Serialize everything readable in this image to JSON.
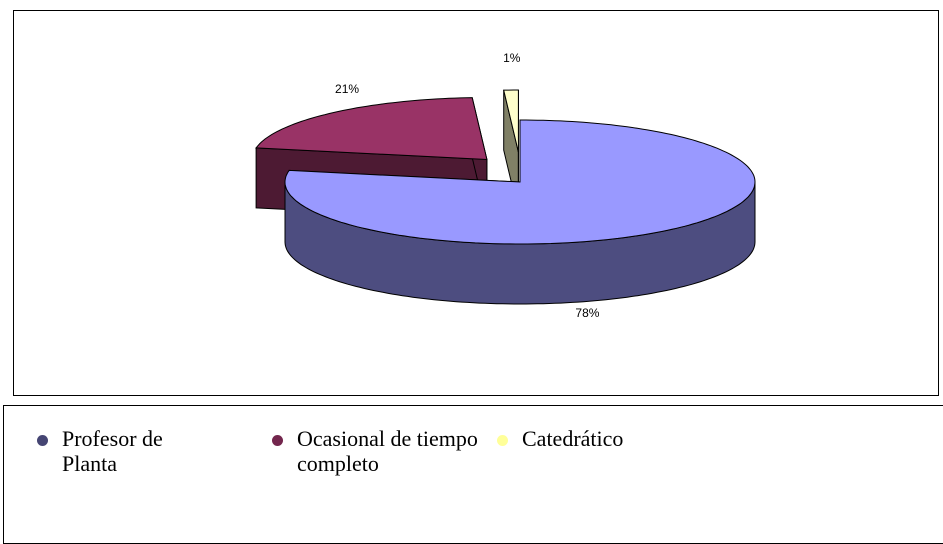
{
  "chart_data": {
    "type": "pie3d",
    "categories": [
      "Profesor de Planta",
      "Ocasional de tiempo completo",
      "Catedrático"
    ],
    "values": [
      78,
      21,
      1
    ],
    "value_labels": [
      "78%",
      "21%",
      "1%"
    ],
    "colors": [
      "#9999ff",
      "#993366",
      "#ffffcc"
    ],
    "legend": "bottom"
  }
}
